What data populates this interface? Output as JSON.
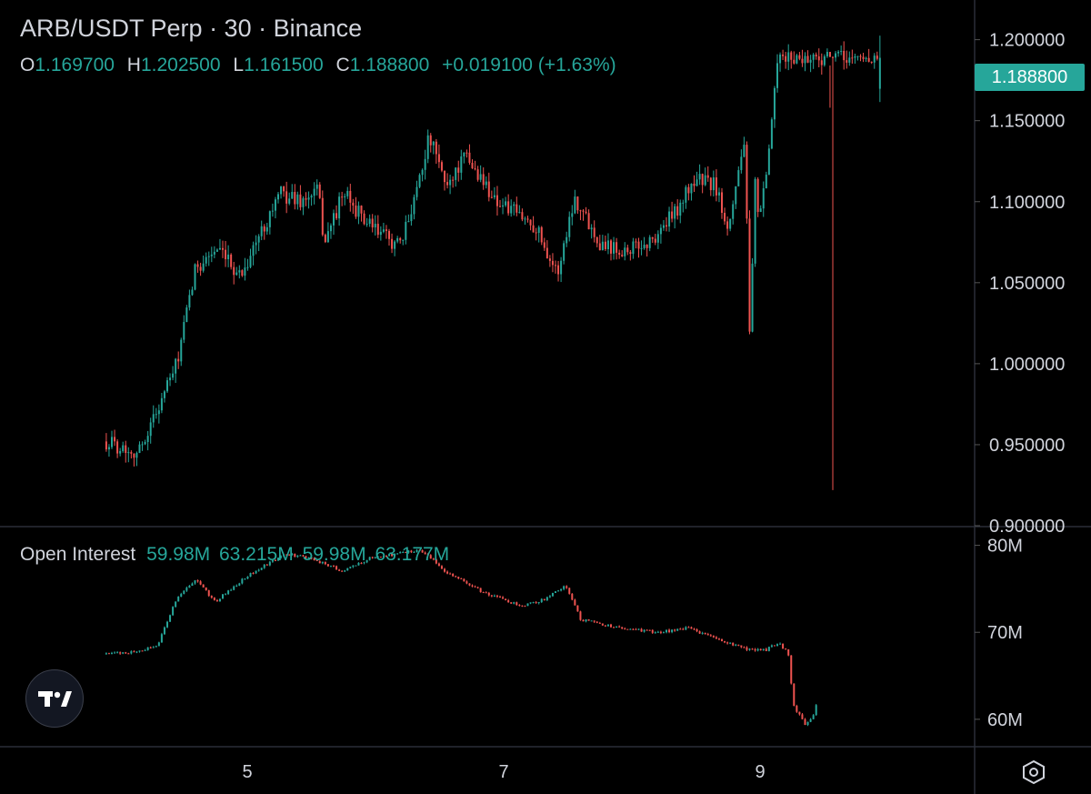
{
  "header": {
    "title": "ARB/USDT Perp · 30 · Binance",
    "ohlc": {
      "o_label": "O",
      "o_value": "1.169700",
      "h_label": "H",
      "h_value": "1.202500",
      "l_label": "L",
      "l_value": "1.161500",
      "c_label": "C",
      "c_value": "1.188800",
      "change": "+0.019100 (+1.63%)"
    }
  },
  "price_tag": "1.188800",
  "open_interest": {
    "label": "Open Interest",
    "values": [
      "59.98M",
      "63.215M",
      "59.98M",
      "63.177M"
    ]
  },
  "colors": {
    "up": "#26a69a",
    "down": "#ef5350",
    "background": "#000000",
    "grid": "#2a2e39",
    "text": "#d1d4dc"
  },
  "icons": {
    "logo": "tradingview-logo-icon",
    "settings": "settings-hexagon-icon"
  },
  "chart_data": [
    {
      "type": "candlestick",
      "title": "ARB/USDT Perp · 30 · Binance",
      "ylim": [
        0.9,
        1.22
      ],
      "yticks": [
        "1.200000",
        "1.150000",
        "1.100000",
        "1.050000",
        "1.000000",
        "0.950000",
        "0.900000"
      ],
      "ytick_values": [
        1.2,
        1.15,
        1.1,
        1.05,
        1.0,
        0.95,
        0.9
      ],
      "xticks": [
        "5",
        "7",
        "9"
      ],
      "xtick_days": [
        5,
        7,
        9
      ],
      "x_start_day": 3.9,
      "x_end_day": 9.95,
      "anchors": [
        [
          3.9,
          0.952
        ],
        [
          4.15,
          0.945
        ],
        [
          4.45,
          1.0
        ],
        [
          4.6,
          1.06
        ],
        [
          4.75,
          1.07
        ],
        [
          4.95,
          1.055
        ],
        [
          5.25,
          1.105
        ],
        [
          5.45,
          1.1
        ],
        [
          5.55,
          1.108
        ],
        [
          5.6,
          1.075
        ],
        [
          5.75,
          1.105
        ],
        [
          5.95,
          1.085
        ],
        [
          6.2,
          1.072
        ],
        [
          6.42,
          1.14
        ],
        [
          6.55,
          1.11
        ],
        [
          6.7,
          1.128
        ],
        [
          6.95,
          1.1
        ],
        [
          7.25,
          1.085
        ],
        [
          7.42,
          1.055
        ],
        [
          7.55,
          1.103
        ],
        [
          7.75,
          1.075
        ],
        [
          7.95,
          1.07
        ],
        [
          8.15,
          1.075
        ],
        [
          8.35,
          1.095
        ],
        [
          8.5,
          1.115
        ],
        [
          8.65,
          1.11
        ],
        [
          8.75,
          1.085
        ],
        [
          8.88,
          1.14
        ],
        [
          8.92,
          1.01
        ],
        [
          8.96,
          1.11
        ],
        [
          9.0,
          1.09
        ],
        [
          9.06,
          1.12
        ],
        [
          9.1,
          1.16
        ],
        [
          9.14,
          1.185
        ],
        [
          9.17,
          1.1888
        ]
      ],
      "last_candle": {
        "open": 1.1697,
        "high": 1.2025,
        "low": 1.1615,
        "close": 1.1888
      },
      "wick_extremes": [
        {
          "day": 9.56,
          "low": 0.922
        },
        {
          "day": 9.54,
          "high": 1.158
        },
        {
          "day": 9.93,
          "high": 1.2025
        }
      ]
    },
    {
      "type": "bar",
      "title": "Open Interest",
      "ylim": [
        58,
        81
      ],
      "yticks": [
        "80M",
        "70M",
        "60M"
      ],
      "ytick_values": [
        80,
        70,
        60
      ],
      "anchors": [
        [
          3.9,
          67.5
        ],
        [
          4.15,
          67.8
        ],
        [
          4.3,
          68.5
        ],
        [
          4.45,
          74.0
        ],
        [
          4.6,
          76.0
        ],
        [
          4.75,
          73.5
        ],
        [
          5.0,
          76.5
        ],
        [
          5.3,
          79.0
        ],
        [
          5.5,
          78.5
        ],
        [
          5.75,
          77.0
        ],
        [
          5.95,
          78.5
        ],
        [
          6.35,
          79.5
        ],
        [
          6.55,
          77.0
        ],
        [
          6.85,
          74.5
        ],
        [
          7.15,
          73.0
        ],
        [
          7.35,
          74.0
        ],
        [
          7.48,
          75.5
        ],
        [
          7.6,
          71.5
        ],
        [
          7.9,
          70.5
        ],
        [
          8.2,
          70.0
        ],
        [
          8.45,
          70.5
        ],
        [
          8.7,
          69.0
        ],
        [
          8.9,
          68.0
        ],
        [
          9.05,
          68.0
        ],
        [
          9.15,
          68.8
        ],
        [
          9.22,
          67.5
        ],
        [
          9.26,
          61.5
        ],
        [
          9.35,
          59.5
        ],
        [
          9.42,
          60.5
        ],
        [
          9.45,
          62.5
        ]
      ]
    }
  ]
}
